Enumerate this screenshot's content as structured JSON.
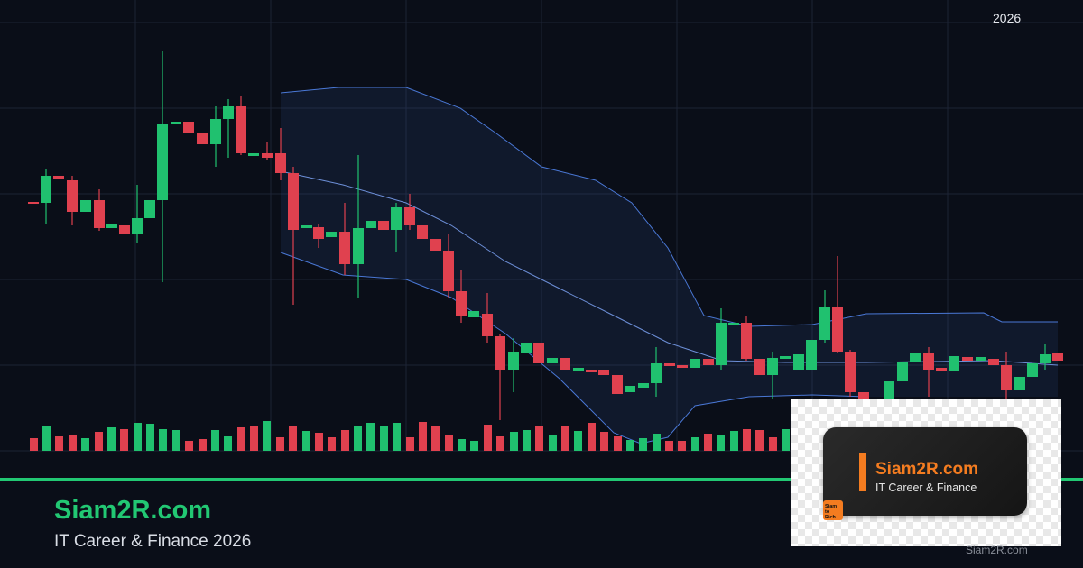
{
  "header": {
    "year": "2026"
  },
  "brand": {
    "title": "Siam2R.com",
    "subtitle": "IT Career & Finance 2026"
  },
  "logo": {
    "title": "Siam2R.com",
    "subtitle": "IT Career & Finance",
    "badge": "Siam to Rich"
  },
  "watermark": "Siam2R.com"
}
